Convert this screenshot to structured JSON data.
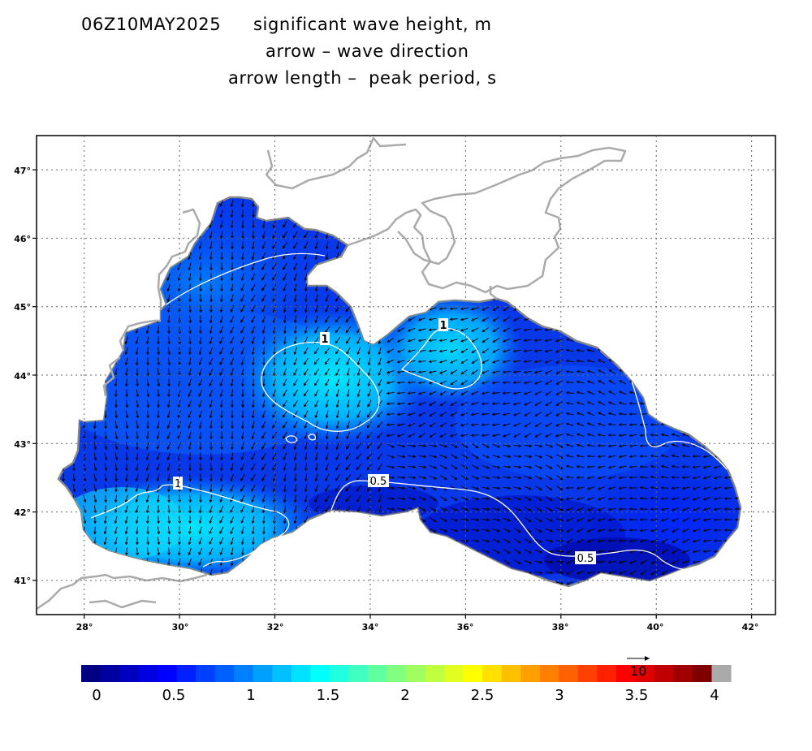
{
  "title": {
    "time": "06Z10MAY2025",
    "line1": "significant wave height, m",
    "line2": "arrow – wave direction",
    "line3": "arrow length –  peak period, s"
  },
  "map": {
    "lon_range": [
      27.0,
      42.5
    ],
    "lat_range": [
      40.5,
      47.5
    ],
    "lon_ticks": [
      "28°",
      "30°",
      "32°",
      "34°",
      "36°",
      "38°",
      "40°",
      "42°"
    ],
    "lat_ticks": [
      "41°",
      "42°",
      "43°",
      "44°",
      "45°",
      "46°",
      "47°"
    ],
    "gridlines": "dotted",
    "contour_labels": [
      "1",
      "1",
      "1",
      "0.5",
      "0.5"
    ],
    "colors": {
      "coast": "#aaaaaa",
      "contour": "#ffffff",
      "arrow": "#000000"
    }
  },
  "colorbar": {
    "labels": [
      "0",
      "0.5",
      "1",
      "1.5",
      "2",
      "2.5",
      "3",
      "3.5",
      "4"
    ],
    "range": [
      0,
      4
    ],
    "colors": [
      "#000080",
      "#0000a0",
      "#0000c0",
      "#0000e0",
      "#0000ff",
      "#0020ff",
      "#0040ff",
      "#0060ff",
      "#0080ff",
      "#00a0ff",
      "#00c0ff",
      "#00e0ff",
      "#00ffff",
      "#20ffe0",
      "#40ffc0",
      "#60ffa0",
      "#80ff80",
      "#a0ff60",
      "#c0ff40",
      "#e0ff20",
      "#ffff00",
      "#ffe000",
      "#ffc000",
      "#ffa000",
      "#ff8000",
      "#ff6000",
      "#ff4000",
      "#ff2000",
      "#ff0000",
      "#e00000",
      "#c00000",
      "#a00000",
      "#800000",
      "#aaaaaa"
    ],
    "reference_arrow_label": "10"
  }
}
